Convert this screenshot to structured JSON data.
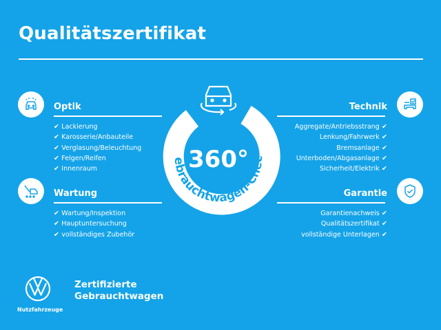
{
  "title": "Qualitätszertifikat",
  "center": {
    "big": "360°",
    "arc_text": "Gebrauchtwagen-Check"
  },
  "sections": {
    "optik": {
      "heading": "Optik",
      "icon": "car-front-icon",
      "items": [
        "Lackierung",
        "Karosserie/Anbauteile",
        "Verglasung/Beleuchtung",
        "Felgen/Reifen",
        "Innenraum"
      ]
    },
    "wartung": {
      "heading": "Wartung",
      "icon": "wrench-car-icon",
      "items": [
        "Wartung/Inspektion",
        "Hauptuntersuchung",
        "vollständiges Zubehör"
      ]
    },
    "technik": {
      "heading": "Technik",
      "icon": "checklist-car-icon",
      "items": [
        "Aggregate/Antriebsstrang",
        "Lenkung/Fahrwerk",
        "Bremsanlage",
        "Unterboden/Abgasanlage",
        "Sicherheit/Elektrik"
      ]
    },
    "garantie": {
      "heading": "Garantie",
      "icon": "shield-check-icon",
      "items": [
        "Garantienachweis",
        "Qualitätszertifikat",
        "vollständige Unterlagen"
      ]
    }
  },
  "brand": {
    "line1": "Zertifizierte",
    "line2": "Gebrauchtwagen",
    "sub": "Nutzfahrzeuge",
    "logo": "VW"
  },
  "colors": {
    "background": "#14a3e8",
    "foreground": "#ffffff"
  }
}
